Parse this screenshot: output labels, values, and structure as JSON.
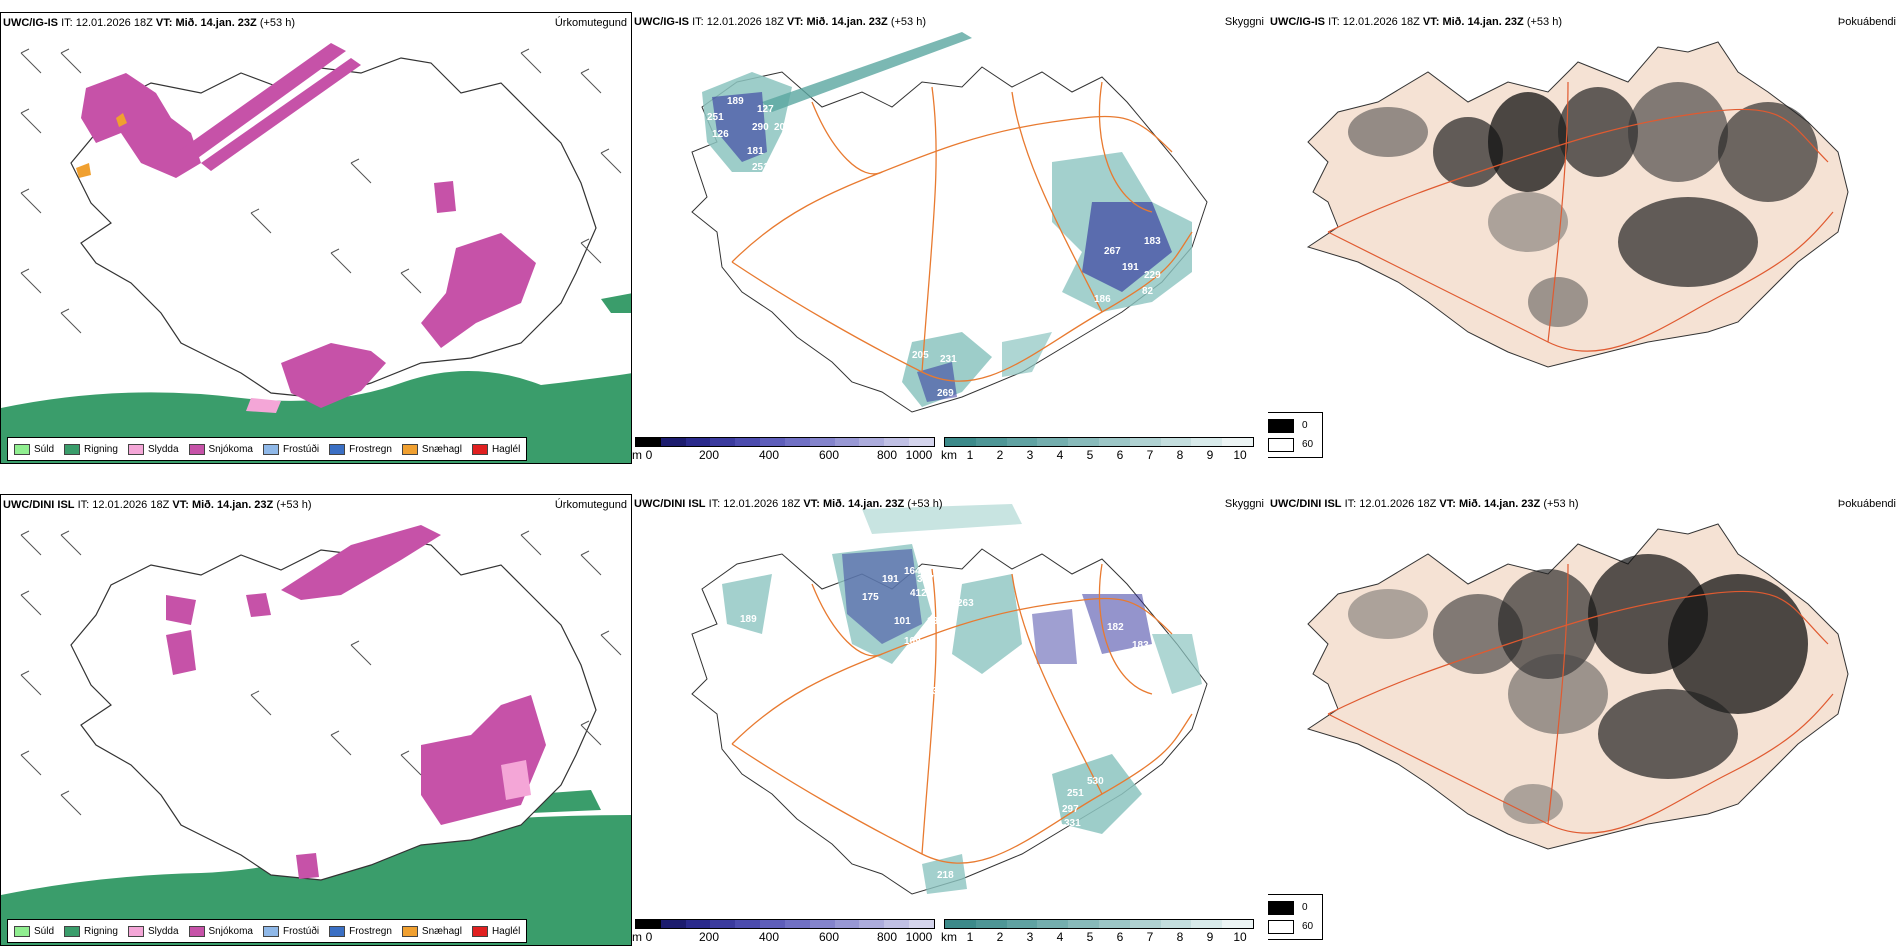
{
  "rows": [
    {
      "model": "UWC/IG-IS",
      "it_label": "IT:",
      "it_value": "12.01.2026 18Z",
      "vt_label": "VT:",
      "vt_value": "Mið. 14.jan. 23Z",
      "lead": "(+53 h)",
      "panel_titles": [
        "Úrkomutegund",
        "Skyggni",
        "Þokuábendi"
      ],
      "visibility_labels": [
        "189",
        "127",
        "290",
        "202",
        "251",
        "126",
        "181",
        "251",
        "276",
        "267",
        "183",
        "191",
        "229",
        "186",
        "152",
        "205",
        "231",
        "269",
        "82"
      ]
    },
    {
      "model": "UWC/DINI ISL",
      "it_label": "IT:",
      "it_value": "12.01.2026 18Z",
      "vt_label": "VT:",
      "vt_value": "Mið. 14.jan. 23Z",
      "lead": "(+53 h)",
      "panel_titles": [
        "Úrkomutegund",
        "Skyggni",
        "Þokuábendi"
      ],
      "visibility_labels": [
        "189",
        "94",
        "175",
        "191",
        "164",
        "412",
        "367",
        "109",
        "139",
        "101",
        "321",
        "263",
        "182",
        "153",
        "183",
        "328",
        "522",
        "530",
        "251",
        "297",
        "331",
        "218",
        "47",
        "40"
      ]
    }
  ],
  "precip_legend": [
    {
      "label": "Súld",
      "color": "#90ee90"
    },
    {
      "label": "Rigning",
      "color": "#3a9d6b"
    },
    {
      "label": "Slydda",
      "color": "#f4a6d7"
    },
    {
      "label": "Snjókoma",
      "color": "#c652a8"
    },
    {
      "label": "Frostúði",
      "color": "#8fb8e8"
    },
    {
      "label": "Frostregn",
      "color": "#3a6fc4"
    },
    {
      "label": "Snæhagl",
      "color": "#f0a030"
    },
    {
      "label": "Haglél",
      "color": "#e02020"
    }
  ],
  "cloud_scale": {
    "unit": "m",
    "ticks": [
      "0",
      "200",
      "400",
      "600",
      "800",
      "1000"
    ],
    "colors": [
      "#000000",
      "#1c1c6e",
      "#2a2a8c",
      "#3b3b9e",
      "#4c4cae",
      "#5e5eba",
      "#7070c4",
      "#8484cc",
      "#9898d4",
      "#acacdc",
      "#c0c0e4",
      "#d4d4ec"
    ]
  },
  "vis_scale": {
    "unit": "km",
    "ticks": [
      "1",
      "2",
      "3",
      "4",
      "5",
      "6",
      "7",
      "8",
      "9",
      "10"
    ],
    "colors": [
      "#3c8a8a",
      "#4e9696",
      "#60a2a2",
      "#74aeae",
      "#88baba",
      "#9cc6c6",
      "#b0d2d2",
      "#c4dede",
      "#d8eaea",
      "#ecf4f4"
    ]
  },
  "fog_legend": {
    "high": "0",
    "low": "60"
  },
  "colors": {
    "land_fog": "#f5e2d4",
    "roads": "#e87a30",
    "rain": "#3a9d6b",
    "snow": "#c652a8",
    "cloudbase": "#2a2a9a",
    "vis": "#5aa6a0"
  }
}
